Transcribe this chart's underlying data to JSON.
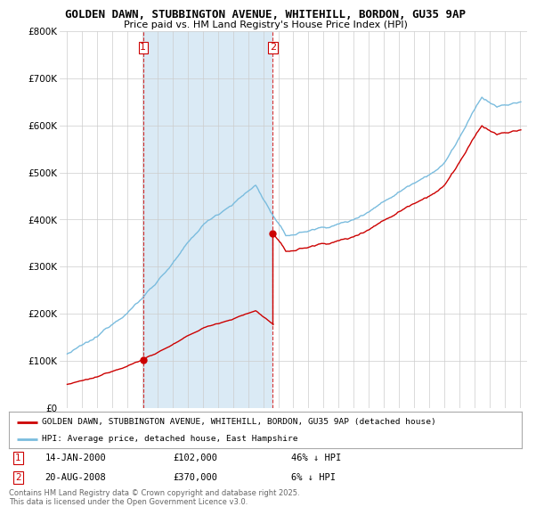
{
  "title_line1": "GOLDEN DAWN, STUBBINGTON AVENUE, WHITEHILL, BORDON, GU35 9AP",
  "title_line2": "Price paid vs. HM Land Registry's House Price Index (HPI)",
  "ylim": [
    0,
    800000
  ],
  "yticks": [
    0,
    100000,
    200000,
    300000,
    400000,
    500000,
    600000,
    700000,
    800000
  ],
  "ytick_labels": [
    "£0",
    "£100K",
    "£200K",
    "£300K",
    "£400K",
    "£500K",
    "£600K",
    "£700K",
    "£800K"
  ],
  "hpi_color": "#7abcde",
  "price_color": "#cc0000",
  "vline_color": "#cc0000",
  "shade_color": "#daeaf5",
  "background_color": "#ffffff",
  "grid_color": "#cccccc",
  "sale1_date": "14-JAN-2000",
  "sale1_price": 102000,
  "sale1_pct": "46% ↓ HPI",
  "sale1_year": 2000.04,
  "sale2_date": "20-AUG-2008",
  "sale2_price": 370000,
  "sale2_pct": "6% ↓ HPI",
  "sale2_year": 2008.63,
  "legend_line1": "GOLDEN DAWN, STUBBINGTON AVENUE, WHITEHILL, BORDON, GU35 9AP (detached house)",
  "legend_line2": "HPI: Average price, detached house, East Hampshire",
  "footer": "Contains HM Land Registry data © Crown copyright and database right 2025.\nThis data is licensed under the Open Government Licence v3.0.",
  "xlim_start": 1994.5,
  "xlim_end": 2025.5
}
